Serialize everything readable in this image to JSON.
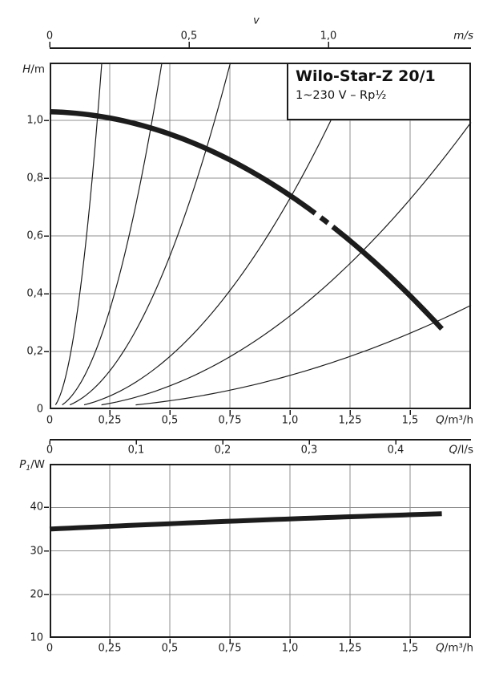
{
  "title_box": {
    "title": "Wilo-Star-Z 20/1",
    "subtitle": "1~230 V – Rp½"
  },
  "velocity_axis": {
    "label": "v",
    "unit": "m/s",
    "tick_labels": [
      "0",
      "0,5",
      "1,0"
    ]
  },
  "main_chart": {
    "y_unit_sym": "H",
    "y_unit_rest": "/m",
    "x_unit_sym": "Q",
    "x_unit_rest": "/m³/h",
    "x_tick_labels": [
      "0",
      "0,25",
      "0,5",
      "0,75",
      "1,0",
      "1,25",
      "1,5"
    ],
    "y_tick_labels": [
      "1,0",
      "0,8",
      "0,6",
      "0,4",
      "0,2",
      "0"
    ]
  },
  "ls_axis": {
    "x_unit_sym": "Q",
    "x_unit_rest": "/l/s",
    "tick_labels": [
      "0",
      "0,1",
      "0,2",
      "0,3",
      "0,4"
    ]
  },
  "power_chart": {
    "y_unit_sym": "P",
    "y_unit_sub": "1",
    "y_unit_rest": "/W",
    "x_unit_sym": "Q",
    "x_unit_rest": "/m³/h",
    "x_tick_labels": [
      "0",
      "0,25",
      "0,5",
      "0,75",
      "1,0",
      "1,25",
      "1,5"
    ],
    "y_tick_labels": [
      "40",
      "30",
      "20",
      "10"
    ]
  },
  "colors": {
    "ink": "#1c1c1c",
    "grid": "#8f8f8f",
    "background": "#ffffff"
  },
  "chart_data": [
    {
      "id": "hq_chart",
      "type": "line",
      "title": "Wilo-Star-Z 20/1",
      "subtitle": "1~230 V – Rp½",
      "xlabel": "Q/m³/h",
      "ylabel": "H/m",
      "xlim": [
        0,
        1.75
      ],
      "ylim": [
        0,
        1.2
      ],
      "grid": true,
      "x_ticks": [
        0,
        0.25,
        0.5,
        0.75,
        1.0,
        1.25,
        1.5
      ],
      "y_ticks": [
        1.0,
        0.8,
        0.6,
        0.4,
        0.2,
        0
      ],
      "series": [
        {
          "name": "pump-curve",
          "style": "thick",
          "x": [
            0,
            0.25,
            0.5,
            0.75,
            1.0,
            1.25,
            1.5,
            1.63
          ],
          "y": [
            1.03,
            1.01,
            0.95,
            0.86,
            0.74,
            0.58,
            0.39,
            0.28
          ],
          "model": {
            "a": 1.03,
            "b": -0.02,
            "c": -0.27
          },
          "solid_segments": [
            [
              0,
              1.105
            ],
            [
              1.128,
              1.158
            ],
            [
              1.178,
              1.632
            ]
          ]
        },
        {
          "name": "system-curves",
          "style": "thin",
          "description": "pipe characteristic parabolas H = k·Q²",
          "coefficients": [
            25.5,
            5.5,
            2.12,
            0.73,
            0.323,
            0.117
          ]
        }
      ],
      "secondary_axes": {
        "velocity": {
          "label": "v",
          "unit": "m/s",
          "ticks": [
            0,
            0.5,
            1.0
          ]
        },
        "flow_ls": {
          "unit": "Q/l/s",
          "ticks": [
            0,
            0.1,
            0.2,
            0.3,
            0.4
          ]
        }
      }
    },
    {
      "id": "power_chart",
      "type": "line",
      "xlabel": "Q/m³/h",
      "ylabel": "P₁/W",
      "xlim": [
        0,
        1.75
      ],
      "ylim": [
        10,
        50
      ],
      "grid": true,
      "x_ticks": [
        0,
        0.25,
        0.5,
        0.75,
        1.0,
        1.25,
        1.5
      ],
      "y_ticks": [
        40,
        30,
        20,
        10
      ],
      "series": [
        {
          "name": "power-curve",
          "style": "thick",
          "x": [
            0,
            0.25,
            0.5,
            0.75,
            1.0,
            1.25,
            1.5,
            1.63
          ],
          "y": [
            35,
            35.6,
            36.2,
            36.8,
            37.3,
            37.8,
            38.3,
            38.5
          ],
          "model": {
            "a": 35,
            "b": 2.6,
            "c": -0.27
          }
        }
      ]
    }
  ]
}
